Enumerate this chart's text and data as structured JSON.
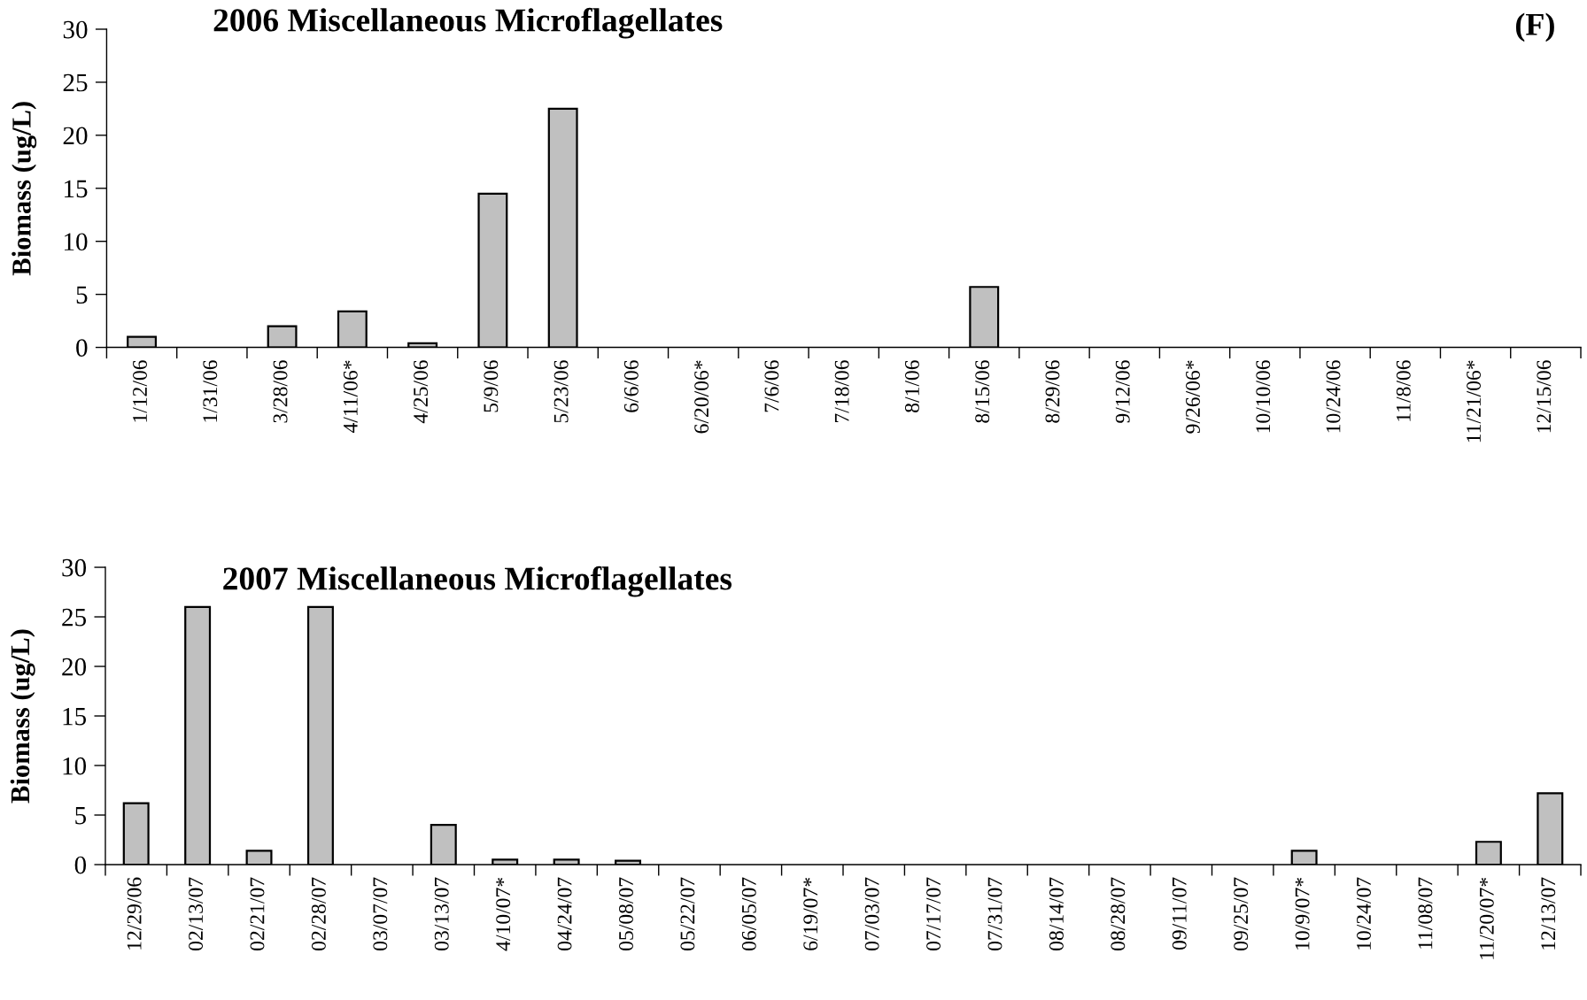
{
  "chart_data": [
    {
      "type": "bar",
      "title": "2006 Miscellaneous Microflagellates",
      "ylabel": "Biomass (ug/L)",
      "categories": [
        "1/12/06",
        "1/31/06",
        "3/28/06",
        "4/11/06*",
        "4/25/06",
        "5/9/06",
        "5/23/06",
        "6/6/06",
        "6/20/06*",
        "7/6/06",
        "7/18/06",
        "8/1/06",
        "8/15/06",
        "8/29/06",
        "9/12/06",
        "9/26/06*",
        "10/10/06",
        "10/24/06",
        "11/8/06",
        "11/21/06*",
        "12/15/06"
      ],
      "values": [
        1.0,
        0,
        2.0,
        3.4,
        0.4,
        14.5,
        22.5,
        0,
        0,
        0,
        0,
        0,
        5.7,
        0,
        0,
        0,
        0,
        0,
        0,
        0,
        0
      ],
      "color": "#c0c0c0",
      "ylim": [
        0,
        30
      ],
      "yticks": [
        0,
        5,
        10,
        15,
        20,
        25,
        30
      ],
      "annotations": [
        "(F)"
      ]
    },
    {
      "type": "bar",
      "title": "2007 Miscellaneous Microflagellates",
      "ylabel": "Biomass (ug/L)",
      "categories": [
        "12/29/06",
        "02/13/07",
        "02/21/07",
        "02/28/07",
        "03/07/07",
        "03/13/07",
        "4/10/07*",
        "04/24/07",
        "05/08/07",
        "05/22/07",
        "06/05/07",
        "6/19/07*",
        "07/03/07",
        "07/17/07",
        "07/31/07",
        "08/14/07",
        "08/28/07",
        "09/11/07",
        "09/25/07",
        "10/9/07*",
        "10/24/07",
        "11/08/07",
        "11/20/07*",
        "12/13/07"
      ],
      "values": [
        6.2,
        26,
        1.4,
        26,
        0,
        4.0,
        0.5,
        0.5,
        0.4,
        0,
        0,
        0,
        0,
        0,
        0,
        0,
        0,
        0,
        0,
        1.4,
        0,
        0,
        2.3,
        7.2
      ],
      "color": "#c0c0c0",
      "ylim": [
        0,
        30
      ],
      "yticks": [
        0,
        5,
        10,
        15,
        20,
        25,
        30
      ]
    }
  ]
}
